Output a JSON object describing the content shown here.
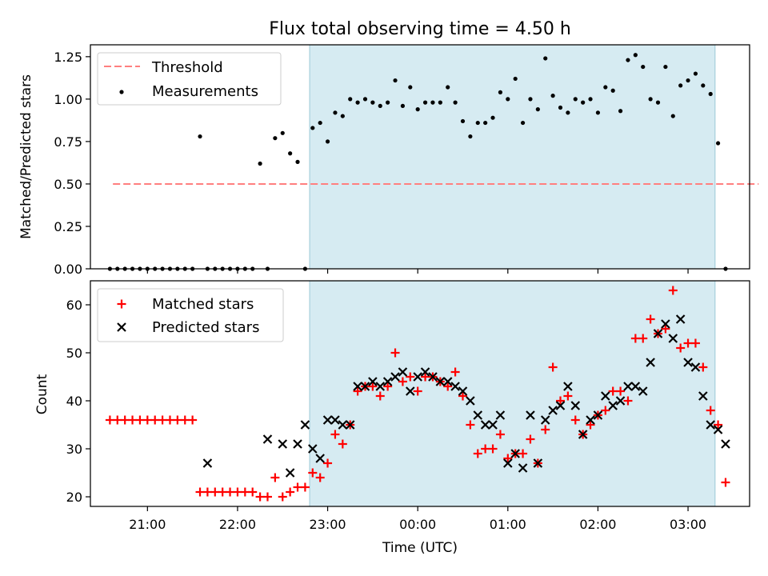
{
  "figure": {
    "title": "Flux total observing time = 4.50 h"
  },
  "colors": {
    "threshold": "#ff7f7f",
    "measurements": "#000000",
    "matched": "#ff0000",
    "predicted": "#000000",
    "shade": "#add8e6"
  },
  "chart_data": [
    {
      "type": "scatter",
      "panel": "top",
      "title": "Flux total observing time = 4.50 h",
      "xlabel": "",
      "ylabel": "Matched/Predicted stars",
      "xlim": [
        "20:22",
        "03:41"
      ],
      "ylim": [
        0,
        1.32
      ],
      "yticks": [
        0.0,
        0.25,
        0.5,
        0.75,
        1.0,
        1.25
      ],
      "ytick_labels": [
        "0.00",
        "0.25",
        "0.50",
        "0.75",
        "1.00",
        "1.25"
      ],
      "xticks": [
        "21:00",
        "22:00",
        "23:00",
        "00:00",
        "01:00",
        "02:00",
        "03:00"
      ],
      "shaded_region": [
        "22:48",
        "03:18"
      ],
      "legend": {
        "placement": "upper-left",
        "entries": [
          "Threshold",
          "Measurements"
        ]
      },
      "series": [
        {
          "name": "Threshold",
          "kind": "dashed-line",
          "x": [
            "20:37",
            "03:47"
          ],
          "y": [
            0.5,
            0.5
          ]
        },
        {
          "name": "Measurements",
          "kind": "dots",
          "x": [
            "20:35",
            "20:40",
            "20:45",
            "20:50",
            "20:55",
            "21:00",
            "21:05",
            "21:10",
            "21:15",
            "21:20",
            "21:25",
            "21:30",
            "21:35",
            "21:40",
            "21:45",
            "21:50",
            "21:55",
            "22:00",
            "22:05",
            "22:10",
            "22:15",
            "22:20",
            "22:25",
            "22:30",
            "22:35",
            "22:40",
            "22:45",
            "22:50",
            "22:55",
            "23:00",
            "23:05",
            "23:10",
            "23:15",
            "23:20",
            "23:25",
            "23:30",
            "23:35",
            "23:40",
            "23:45",
            "23:50",
            "23:55",
            "00:00",
            "00:05",
            "00:10",
            "00:15",
            "00:20",
            "00:25",
            "00:30",
            "00:35",
            "00:40",
            "00:45",
            "00:50",
            "00:55",
            "01:00",
            "01:05",
            "01:10",
            "01:15",
            "01:20",
            "01:25",
            "01:30",
            "01:35",
            "01:40",
            "01:45",
            "01:50",
            "01:55",
            "02:00",
            "02:05",
            "02:10",
            "02:15",
            "02:20",
            "02:25",
            "02:30",
            "02:35",
            "02:40",
            "02:45",
            "02:50",
            "02:55",
            "03:00",
            "03:05",
            "03:10",
            "03:15",
            "03:20",
            "03:25"
          ],
          "y": [
            0,
            0,
            0,
            0,
            0,
            0,
            0,
            0,
            0,
            0,
            0,
            0,
            0.78,
            0,
            0,
            0,
            0,
            0,
            0,
            0,
            0.62,
            0,
            0.77,
            0.8,
            0.68,
            0.63,
            0,
            0.83,
            0.86,
            0.75,
            0.92,
            0.9,
            1.0,
            0.98,
            1.0,
            0.98,
            0.96,
            0.98,
            1.11,
            0.96,
            1.07,
            0.94,
            0.98,
            0.98,
            0.98,
            1.07,
            0.98,
            0.87,
            0.78,
            0.86,
            0.86,
            0.89,
            1.04,
            1.0,
            1.12,
            0.86,
            1.0,
            0.94,
            1.24,
            1.02,
            0.95,
            0.92,
            1.0,
            0.98,
            1.0,
            0.92,
            1.07,
            1.05,
            0.93,
            1.23,
            1.26,
            1.19,
            1.0,
            0.98,
            1.19,
            0.9,
            1.08,
            1.11,
            1.15,
            1.08,
            1.03,
            0.74,
            0
          ]
        }
      ]
    },
    {
      "type": "scatter",
      "panel": "bottom",
      "xlabel": "Time (UTC)",
      "ylabel": "Count",
      "xlim": [
        "20:22",
        "03:41"
      ],
      "ylim": [
        18,
        65
      ],
      "yticks": [
        20,
        30,
        40,
        50,
        60
      ],
      "xticks": [
        "21:00",
        "22:00",
        "23:00",
        "00:00",
        "01:00",
        "02:00",
        "03:00"
      ],
      "shaded_region": [
        "22:48",
        "03:18"
      ],
      "legend": {
        "placement": "upper-left",
        "entries": [
          "Matched stars",
          "Predicted stars"
        ]
      },
      "series": [
        {
          "name": "Matched stars",
          "marker": "plus",
          "x": [
            "20:35",
            "20:40",
            "20:45",
            "20:50",
            "20:55",
            "21:00",
            "21:05",
            "21:10",
            "21:15",
            "21:20",
            "21:25",
            "21:30",
            "21:35",
            "21:40",
            "21:45",
            "21:50",
            "21:55",
            "22:00",
            "22:05",
            "22:10",
            "22:15",
            "22:20",
            "22:25",
            "22:30",
            "22:35",
            "22:40",
            "22:45",
            "22:50",
            "22:55",
            "23:00",
            "23:05",
            "23:10",
            "23:15",
            "23:20",
            "23:25",
            "23:30",
            "23:35",
            "23:40",
            "23:45",
            "23:50",
            "23:55",
            "00:00",
            "00:05",
            "00:10",
            "00:15",
            "00:20",
            "00:25",
            "00:30",
            "00:35",
            "00:40",
            "00:45",
            "00:50",
            "00:55",
            "01:00",
            "01:05",
            "01:10",
            "01:15",
            "01:20",
            "01:25",
            "01:30",
            "01:35",
            "01:40",
            "01:45",
            "01:50",
            "01:55",
            "02:00",
            "02:05",
            "02:10",
            "02:15",
            "02:20",
            "02:25",
            "02:30",
            "02:35",
            "02:40",
            "02:45",
            "02:50",
            "02:55",
            "03:00",
            "03:05",
            "03:10",
            "03:15",
            "03:20",
            "03:25"
          ],
          "y": [
            36,
            36,
            36,
            36,
            36,
            36,
            36,
            36,
            36,
            36,
            36,
            36,
            21,
            21,
            21,
            21,
            21,
            21,
            21,
            21,
            20,
            20,
            24,
            20,
            21,
            22,
            22,
            25,
            24,
            27,
            33,
            31,
            35,
            42,
            43,
            43,
            41,
            43,
            50,
            44,
            45,
            42,
            45,
            45,
            44,
            43,
            46,
            41,
            35,
            29,
            30,
            30,
            33,
            28,
            29,
            29,
            32,
            27,
            34,
            47,
            40,
            41,
            36,
            33,
            35,
            37,
            38,
            42,
            42,
            40,
            53,
            53,
            57,
            54,
            55,
            63,
            51,
            52,
            52,
            47,
            38,
            35,
            23
          ]
        },
        {
          "name": "Predicted stars",
          "marker": "x",
          "x": [
            "21:40",
            "22:20",
            "22:30",
            "22:35",
            "22:40",
            "22:45",
            "22:50",
            "22:55",
            "23:00",
            "23:05",
            "23:10",
            "23:15",
            "23:20",
            "23:25",
            "23:30",
            "23:35",
            "23:40",
            "23:45",
            "23:50",
            "23:55",
            "00:00",
            "00:05",
            "00:10",
            "00:15",
            "00:20",
            "00:25",
            "00:30",
            "00:35",
            "00:40",
            "00:45",
            "00:50",
            "00:55",
            "01:00",
            "01:05",
            "01:10",
            "01:15",
            "01:20",
            "01:25",
            "01:30",
            "01:35",
            "01:40",
            "01:45",
            "01:50",
            "01:55",
            "02:00",
            "02:05",
            "02:10",
            "02:15",
            "02:20",
            "02:25",
            "02:30",
            "02:35",
            "02:40",
            "02:45",
            "02:50",
            "02:55",
            "03:00",
            "03:05",
            "03:10",
            "03:15",
            "03:20",
            "03:25"
          ],
          "y": [
            27,
            32,
            31,
            25,
            31,
            35,
            30,
            28,
            36,
            36,
            35,
            35,
            43,
            43,
            44,
            43,
            44,
            45,
            46,
            42,
            45,
            46,
            45,
            44,
            44,
            43,
            42,
            40,
            37,
            35,
            35,
            37,
            27,
            29,
            26,
            37,
            27,
            36,
            38,
            39,
            43,
            39,
            33,
            36,
            37,
            41,
            39,
            40,
            43,
            43,
            42,
            48,
            54,
            56,
            53,
            57,
            48,
            47,
            41,
            35,
            34,
            31
          ]
        }
      ]
    }
  ]
}
